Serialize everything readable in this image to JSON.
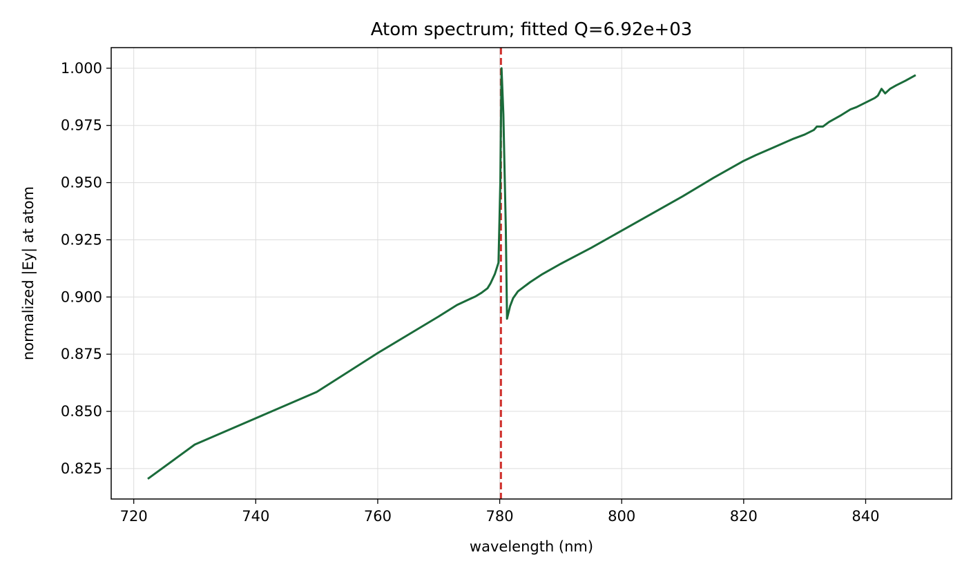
{
  "chart_data": {
    "type": "line",
    "title": "Atom spectrum; fitted Q=6.92e+03",
    "xlabel": "wavelength (nm)",
    "ylabel": "normalized |Ey| at atom",
    "xlim": [
      716.3,
      854.1
    ],
    "ylim": [
      0.8117,
      1.009
    ],
    "xticks": [
      720,
      740,
      760,
      780,
      800,
      820,
      840
    ],
    "xtick_labels": [
      "720",
      "740",
      "760",
      "780",
      "800",
      "820",
      "840"
    ],
    "yticks": [
      0.825,
      0.85,
      0.875,
      0.9,
      0.925,
      0.95,
      0.975,
      1.0
    ],
    "ytick_labels": [
      "0.825",
      "0.850",
      "0.875",
      "0.900",
      "0.925",
      "0.950",
      "0.975",
      "1.000"
    ],
    "grid": true,
    "series": [
      {
        "color": "#1a6b3a",
        "x": [
          722.3,
          730,
          740,
          750,
          760,
          765,
          770,
          773,
          775,
          776,
          777,
          778,
          778.5,
          779.2,
          779.8,
          780.1,
          780.3,
          780.6,
          781.0,
          781.2,
          781.7,
          782.2,
          783,
          785,
          787,
          790,
          795,
          800,
          805,
          810,
          815,
          820,
          822,
          825,
          828,
          830,
          831.5,
          832,
          833,
          834,
          836,
          837.5,
          838.5,
          840,
          841.5,
          842,
          842.6,
          843.2,
          844,
          845,
          846.5,
          848.2
        ],
        "values": [
          0.8205,
          0.8355,
          0.847,
          0.8585,
          0.8755,
          0.8835,
          0.8915,
          0.8965,
          0.899,
          0.9002,
          0.9018,
          0.9038,
          0.906,
          0.91,
          0.915,
          0.95,
          1.0,
          0.98,
          0.93,
          0.8905,
          0.896,
          0.8995,
          0.9025,
          0.9065,
          0.91,
          0.9145,
          0.9215,
          0.929,
          0.9365,
          0.944,
          0.952,
          0.9595,
          0.962,
          0.9655,
          0.969,
          0.971,
          0.973,
          0.9745,
          0.9745,
          0.9765,
          0.9795,
          0.982,
          0.983,
          0.985,
          0.987,
          0.988,
          0.991,
          0.989,
          0.991,
          0.9925,
          0.9945,
          0.997
        ]
      }
    ],
    "reference_line": {
      "orientation": "vertical",
      "x": 780.2,
      "style": "dashed",
      "color": "#d0312d"
    }
  }
}
